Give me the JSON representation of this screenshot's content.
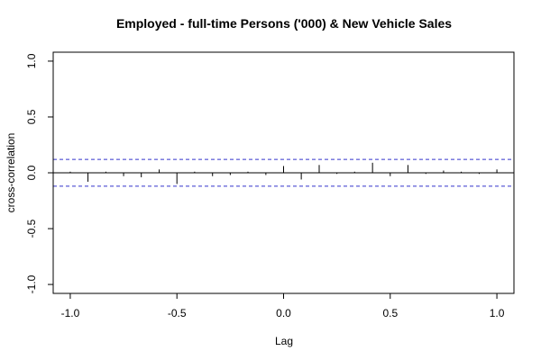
{
  "chart_data": {
    "type": "bar",
    "title": "Employed - full-time Persons ('000) & New Vehicle Sales",
    "xlabel": "Lag",
    "ylabel": "cross-correlation",
    "xlim": [
      -1.08,
      1.08
    ],
    "ylim": [
      -1.08,
      1.08
    ],
    "x_ticks": [
      -1.0,
      -0.5,
      0.0,
      0.5,
      1.0
    ],
    "x_tick_labels": [
      "-1.0",
      "-0.5",
      "0.0",
      "0.5",
      "1.0"
    ],
    "y_ticks": [
      -1.0,
      -0.5,
      0.0,
      0.5,
      1.0
    ],
    "y_tick_labels": [
      "-1.0",
      "-0.5",
      "0.0",
      "0.5",
      "1.0"
    ],
    "confidence_bounds": [
      0.12,
      -0.12
    ],
    "confidence_color": "#3333cc",
    "zero_line": true,
    "grid": false,
    "series": [
      {
        "lag": [
          -1.0,
          -0.917,
          -0.833,
          -0.75,
          -0.667,
          -0.583,
          -0.5,
          -0.417,
          -0.333,
          -0.25,
          -0.167,
          -0.083,
          0.0,
          0.083,
          0.167,
          0.25,
          0.333,
          0.417,
          0.5,
          0.583,
          0.667,
          0.75,
          0.833,
          0.917,
          1.0
        ],
        "value": [
          0.01,
          -0.08,
          0.01,
          -0.03,
          -0.04,
          0.03,
          -0.1,
          0.01,
          -0.03,
          -0.02,
          0.01,
          -0.02,
          0.06,
          -0.06,
          0.07,
          -0.01,
          0.01,
          0.09,
          -0.03,
          0.07,
          -0.01,
          0.02,
          0.01,
          -0.01,
          0.03
        ]
      }
    ]
  }
}
